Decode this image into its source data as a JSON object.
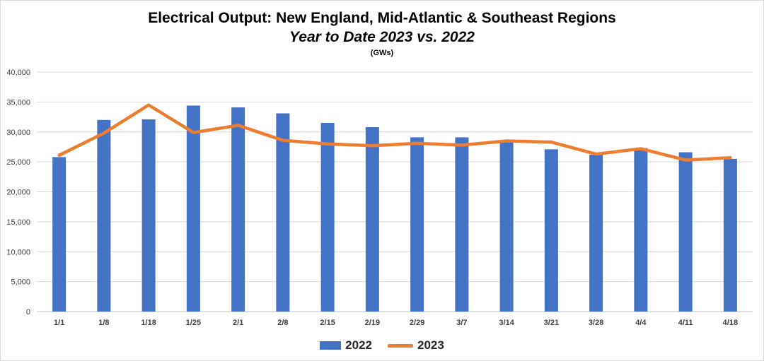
{
  "chart_data": {
    "type": "bar",
    "title": "Electrical Output:  New England, Mid-Atlantic & Southeast Regions",
    "subtitle": "Year to Date 2023 vs. 2022",
    "units": "(GWs)",
    "categories": [
      "1/1",
      "1/8",
      "1/18",
      "1/25",
      "2/1",
      "2/8",
      "2/15",
      "2/19",
      "2/29",
      "3/7",
      "3/14",
      "3/21",
      "3/28",
      "4/4",
      "4/11",
      "4/18"
    ],
    "ylim": [
      0,
      40000
    ],
    "yticks": [
      "0",
      "5,000",
      "10,000",
      "15,000",
      "20,000",
      "25,000",
      "30,000",
      "35,000",
      "40,000"
    ],
    "ytick_values": [
      0,
      5000,
      10000,
      15000,
      20000,
      25000,
      30000,
      35000,
      40000
    ],
    "grid": true,
    "legend_position": "bottom",
    "series": [
      {
        "name": "2022",
        "type": "bar",
        "color": "#4472c4",
        "values": [
          25800,
          32000,
          32100,
          34400,
          34100,
          33100,
          31500,
          30800,
          29100,
          29100,
          28400,
          27100,
          26200,
          27300,
          26600,
          25500
        ]
      },
      {
        "name": "2023",
        "type": "line",
        "color": "#ed7d31",
        "values": [
          26100,
          29800,
          34500,
          29900,
          31100,
          28600,
          28000,
          27700,
          28100,
          27800,
          28500,
          28300,
          26300,
          27200,
          25300,
          25700
        ]
      }
    ]
  }
}
